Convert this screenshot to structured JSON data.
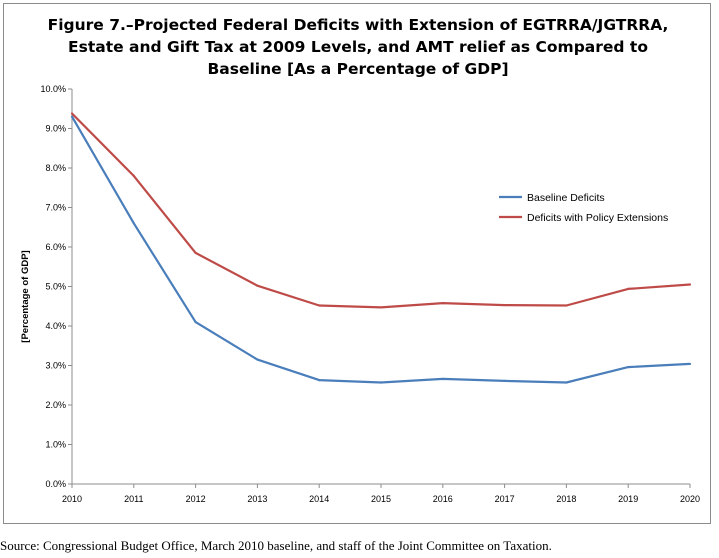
{
  "chart_data": {
    "type": "line",
    "title_lines": [
      "Figure 7.–Projected Federal Deficits with Extension of EGTRRA/JGTRRA,",
      "Estate and Gift Tax at 2009 Levels, and AMT relief as Compared  to",
      "Baseline [As a Percentage of GDP]"
    ],
    "xlabel": "",
    "ylabel": "[Percentage of GDP]",
    "x": [
      "2010",
      "2011",
      "2012",
      "2013",
      "2014",
      "2015",
      "2016",
      "2017",
      "2018",
      "2019",
      "2020"
    ],
    "yticks": [
      "0.0%",
      "1.0%",
      "2.0%",
      "3.0%",
      "4.0%",
      "5.0%",
      "6.0%",
      "7.0%",
      "8.0%",
      "9.0%",
      "10.0%"
    ],
    "ylim": [
      0,
      10
    ],
    "grid": false,
    "legend_position": "right",
    "series": [
      {
        "name": "Baseline Deficits",
        "color": "#4a7ebb",
        "values": [
          9.3,
          6.6,
          4.1,
          3.15,
          2.63,
          2.57,
          2.66,
          2.61,
          2.57,
          2.96,
          3.04
        ]
      },
      {
        "name": "Deficits with Policy Extensions",
        "color": "#be4b48",
        "values": [
          9.38,
          7.8,
          5.85,
          5.02,
          4.52,
          4.47,
          4.58,
          4.53,
          4.52,
          4.94,
          5.05
        ]
      }
    ]
  },
  "source_note": "Source:  Congressional Budget Office, March 2010 baseline, and staff of the Joint Committee on Taxation."
}
